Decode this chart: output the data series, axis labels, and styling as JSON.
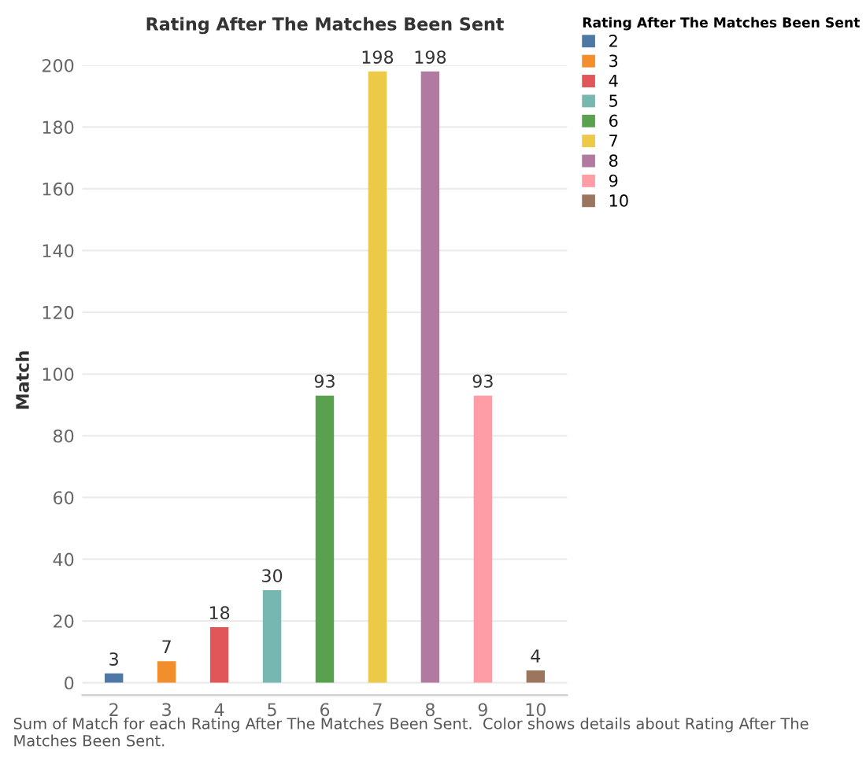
{
  "chart_data": {
    "type": "bar",
    "title": "Rating After The Matches Been Sent",
    "ylabel": "Match",
    "legend_title": "Rating After The Matches Been Sent",
    "categories": [
      "2",
      "3",
      "4",
      "5",
      "6",
      "7",
      "8",
      "9",
      "10"
    ],
    "series": [
      {
        "name": "2",
        "color": "#4e79a7",
        "values": [
          3,
          null,
          null,
          null,
          null,
          null,
          null,
          null,
          null
        ]
      },
      {
        "name": "3",
        "color": "#f28e2b",
        "values": [
          null,
          7,
          null,
          null,
          null,
          null,
          null,
          null,
          null
        ]
      },
      {
        "name": "4",
        "color": "#e15759",
        "values": [
          null,
          null,
          18,
          null,
          null,
          null,
          null,
          null,
          null
        ]
      },
      {
        "name": "5",
        "color": "#76b7b2",
        "values": [
          null,
          null,
          null,
          30,
          null,
          null,
          null,
          null,
          null
        ]
      },
      {
        "name": "6",
        "color": "#59a14f",
        "values": [
          null,
          null,
          null,
          null,
          93,
          null,
          null,
          null,
          null
        ]
      },
      {
        "name": "7",
        "color": "#edc948",
        "values": [
          null,
          null,
          null,
          null,
          null,
          198,
          null,
          null,
          null
        ]
      },
      {
        "name": "8",
        "color": "#b07aa1",
        "values": [
          null,
          null,
          null,
          null,
          null,
          null,
          198,
          null,
          null
        ]
      },
      {
        "name": "9",
        "color": "#ff9da7",
        "values": [
          null,
          null,
          null,
          null,
          null,
          null,
          null,
          93,
          null
        ]
      },
      {
        "name": "10",
        "color": "#9c755f",
        "values": [
          null,
          null,
          null,
          null,
          null,
          null,
          null,
          null,
          4
        ]
      }
    ],
    "ylim": [
      -4,
      200
    ],
    "yticks": [
      0,
      20,
      40,
      60,
      80,
      100,
      120,
      140,
      160,
      180,
      200
    ],
    "grid": "y",
    "legend": "right",
    "data_labels": true,
    "annotations": [
      "Sum of Match for each Rating After The Matches Been Sent.  Color shows details about Rating After The Matches Been Sent."
    ]
  }
}
